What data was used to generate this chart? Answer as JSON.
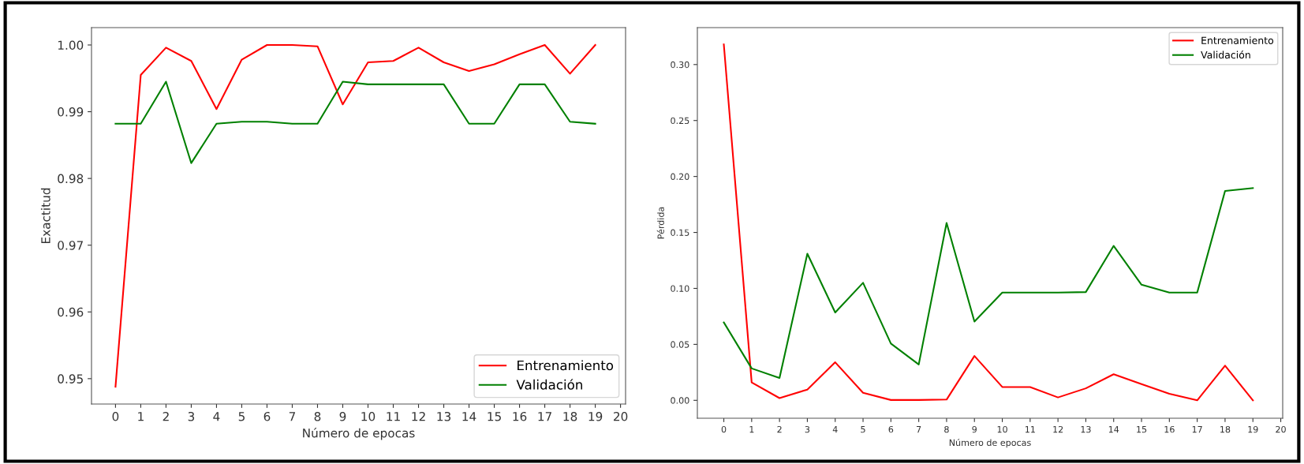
{
  "chart_data": [
    {
      "type": "line",
      "xlabel": "Número de epocas",
      "ylabel": "Exactitud",
      "x": [
        0,
        1,
        2,
        3,
        4,
        5,
        6,
        7,
        8,
        9,
        10,
        11,
        12,
        13,
        14,
        15,
        16,
        17,
        18,
        19
      ],
      "xlim": [
        -0.95,
        20.2
      ],
      "xticks": [
        0,
        1,
        2,
        3,
        4,
        5,
        6,
        7,
        8,
        9,
        10,
        11,
        12,
        13,
        14,
        15,
        16,
        17,
        18,
        19,
        20
      ],
      "ylim": [
        0.9462,
        1.0026
      ],
      "yticks": [
        {
          "value": 0.95,
          "label": "0.95"
        },
        {
          "value": 0.96,
          "label": "0.96"
        },
        {
          "value": 0.97,
          "label": "0.97"
        },
        {
          "value": 0.98,
          "label": "0.98"
        },
        {
          "value": 0.99,
          "label": "0.99"
        },
        {
          "value": 1.0,
          "label": "1.00"
        }
      ],
      "grid": false,
      "legend": "bottom right",
      "series": [
        {
          "name": "Entrenamiento",
          "color": "#ff0000",
          "values": [
            0.9488,
            0.9955,
            0.9996,
            0.9976,
            0.9904,
            0.9978,
            1.0,
            1.0,
            0.9998,
            0.9911,
            0.9974,
            0.9976,
            0.9996,
            0.9974,
            0.9961,
            0.9971,
            0.9986,
            1.0,
            0.9957,
            1.0
          ]
        },
        {
          "name": "Validación",
          "color": "#008000",
          "values": [
            0.9882,
            0.9882,
            0.9945,
            0.9823,
            0.9882,
            0.9885,
            0.9885,
            0.9882,
            0.9882,
            0.9945,
            0.9941,
            0.9941,
            0.9941,
            0.9941,
            0.9882,
            0.9882,
            0.9941,
            0.9941,
            0.9885,
            0.9882
          ]
        }
      ]
    },
    {
      "type": "line",
      "xlabel": "Número de epocas",
      "ylabel": "Pérdida",
      "x": [
        0,
        1,
        2,
        3,
        4,
        5,
        6,
        7,
        8,
        9,
        10,
        11,
        12,
        13,
        14,
        15,
        16,
        17,
        18,
        19
      ],
      "xlim": [
        -0.95,
        20.07
      ],
      "xticks": [
        0,
        1,
        2,
        3,
        4,
        5,
        6,
        7,
        8,
        9,
        10,
        11,
        12,
        13,
        14,
        15,
        16,
        17,
        18,
        19,
        20
      ],
      "ylim": [
        -0.016,
        0.333
      ],
      "yticks": [
        {
          "value": 0.0,
          "label": "0.00"
        },
        {
          "value": 0.05,
          "label": "0.05"
        },
        {
          "value": 0.1,
          "label": "0.10"
        },
        {
          "value": 0.15,
          "label": "0.15"
        },
        {
          "value": 0.2,
          "label": "0.20"
        },
        {
          "value": 0.25,
          "label": "0.25"
        },
        {
          "value": 0.3,
          "label": "0.30"
        }
      ],
      "grid": false,
      "legend": "top right",
      "series": [
        {
          "name": "Entrenamiento",
          "color": "#ff0000",
          "values": [
            0.318,
            0.016,
            0.002,
            0.0096,
            0.034,
            0.0067,
            0.0003,
            0.0003,
            0.0007,
            0.0396,
            0.0119,
            0.0119,
            0.0026,
            0.0107,
            0.0233,
            0.0145,
            0.0059,
            0.0,
            0.031,
            0.0
          ]
        },
        {
          "name": "Validación",
          "color": "#008000",
          "values": [
            0.0696,
            0.0285,
            0.02,
            0.131,
            0.0785,
            0.105,
            0.0507,
            0.032,
            0.1585,
            0.0704,
            0.0963,
            0.0963,
            0.0963,
            0.0967,
            0.138,
            0.1033,
            0.0963,
            0.0963,
            0.187,
            0.1896
          ]
        }
      ]
    }
  ]
}
